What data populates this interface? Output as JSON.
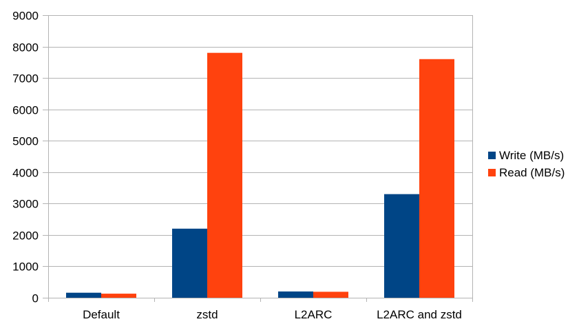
{
  "chart_data": {
    "type": "bar",
    "title": "",
    "xlabel": "",
    "ylabel": "",
    "categories": [
      "Default",
      "zstd",
      "L2ARC",
      "L2ARC and zstd"
    ],
    "series": [
      {
        "name": "Write (MB/s)",
        "color": "#004586",
        "values": [
          160,
          2200,
          200,
          3300
        ]
      },
      {
        "name": "Read (MB/s)",
        "color": "#ff420e",
        "values": [
          130,
          7800,
          190,
          7600
        ]
      }
    ],
    "ylim": [
      0,
      9000
    ],
    "yticks": [
      0,
      1000,
      2000,
      3000,
      4000,
      5000,
      6000,
      7000,
      8000,
      9000
    ],
    "grid": true,
    "legend_position": "right"
  }
}
